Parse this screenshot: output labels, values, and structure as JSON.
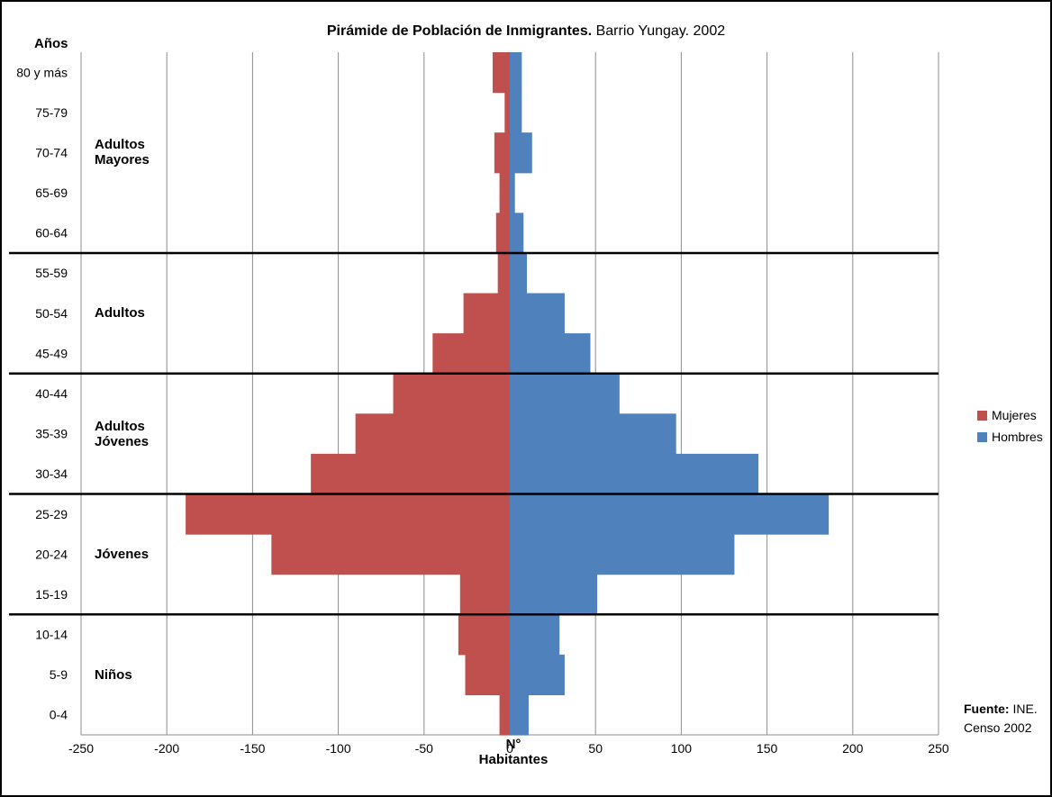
{
  "chart_data": {
    "type": "bar",
    "orientation": "horizontal",
    "title_bold": "Pirámide de Población de Inmigrantes.",
    "title_rest": "Barrio Yungay. 2002",
    "ylabel": "Años",
    "xlabel_line1": "N°",
    "xlabel_line2": "Habitantes",
    "xlim": [
      -250,
      250
    ],
    "xticks": [
      -250,
      -200,
      -150,
      -100,
      -50,
      0,
      50,
      100,
      150,
      200,
      250
    ],
    "grid": true,
    "legend_position": "right",
    "categories": [
      "80 y más",
      "75-79",
      "70-74",
      "65-69",
      "60-64",
      "55-59",
      "50-54",
      "45-49",
      "40-44",
      "35-39",
      "30-34",
      "25-29",
      "20-24",
      "15-19",
      "10-14",
      "5-9",
      "0-4"
    ],
    "series": [
      {
        "name": "Mujeres",
        "color": "#c0504d",
        "values": [
          -10,
          -3,
          -9,
          -6,
          -8,
          -7,
          -27,
          -45,
          -68,
          -90,
          -116,
          -189,
          -139,
          -29,
          -30,
          -26,
          -6
        ]
      },
      {
        "name": "Hombres",
        "color": "#4f81bd",
        "values": [
          7,
          7,
          13,
          3,
          8,
          10,
          32,
          47,
          64,
          97,
          145,
          186,
          131,
          51,
          29,
          32,
          11
        ]
      }
    ],
    "age_groups": [
      {
        "label_line1": "Adultos",
        "label_line2": "Mayores",
        "from": "80 y más",
        "to": "60-64"
      },
      {
        "label_line1": "Adultos",
        "label_line2": "",
        "from": "55-59",
        "to": "45-49"
      },
      {
        "label_line1": "Adultos",
        "label_line2": "Jóvenes",
        "from": "40-44",
        "to": "30-34"
      },
      {
        "label_line1": "Jóvenes",
        "label_line2": "",
        "from": "25-29",
        "to": "15-19"
      },
      {
        "label_line1": "Niños",
        "label_line2": "",
        "from": "10-14",
        "to": "0-4"
      }
    ],
    "source_bold": "Fuente:",
    "source_line1": "INE.",
    "source_line2": "Censo 2002"
  }
}
